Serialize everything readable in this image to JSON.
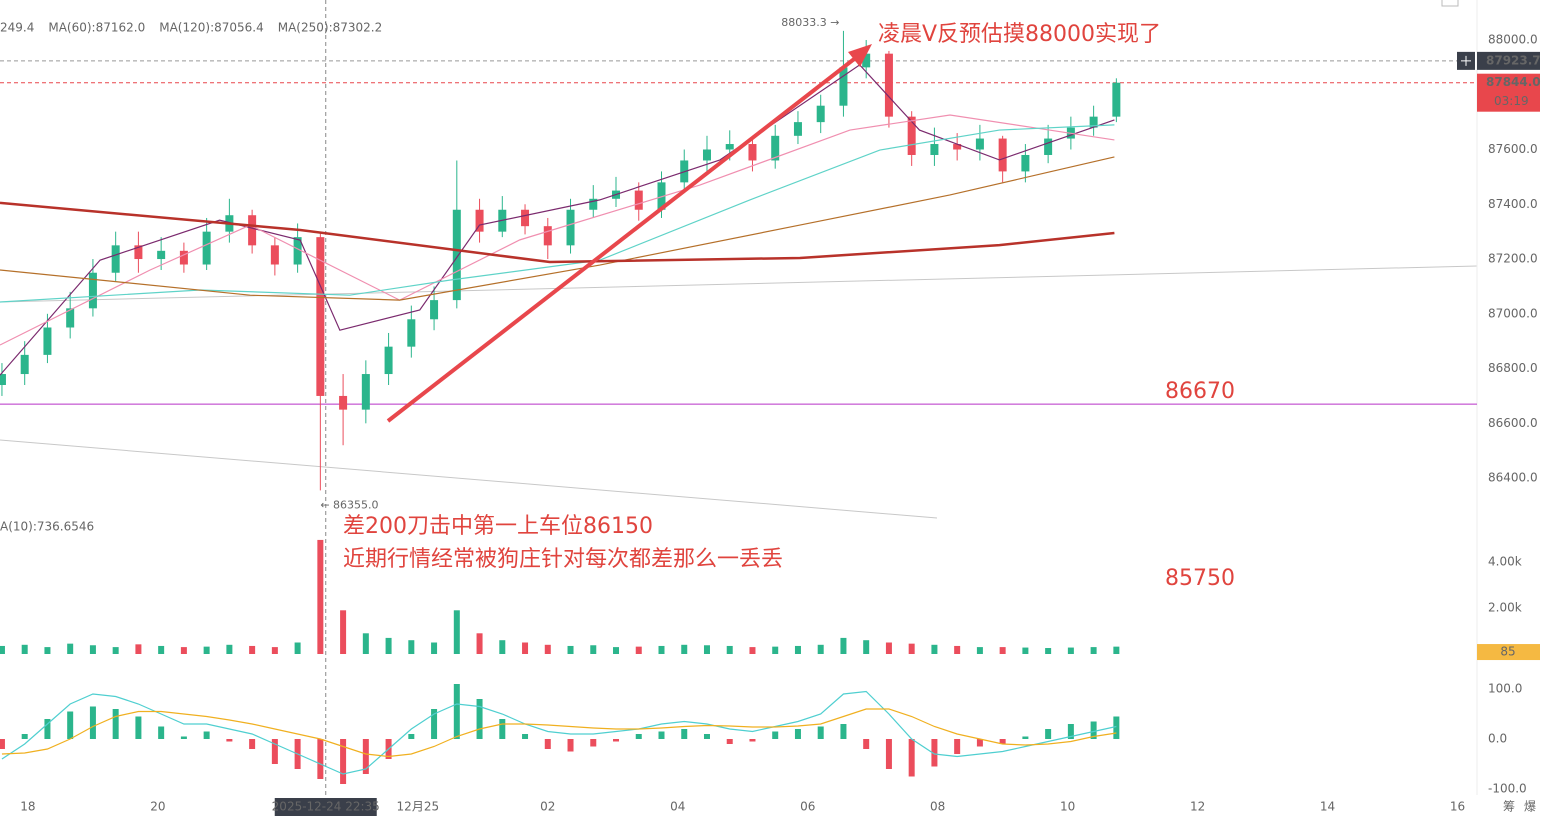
{
  "chart_data": [
    {
      "type": "candlestick",
      "x": [
        17.6,
        17.95,
        18.3,
        18.65,
        19,
        19.35,
        19.7,
        20.05,
        20.4,
        20.75,
        21.1,
        21.45,
        21.8,
        22.15,
        22.5,
        22.85,
        23.2,
        23.55,
        23.9,
        24.25,
        24.6,
        24.95,
        25.3,
        25.65,
        26,
        26.35,
        26.7,
        27.05,
        27.4,
        27.75,
        28.1,
        28.45,
        28.8,
        29.15,
        29.5,
        29.85,
        30.2,
        30.55,
        30.9,
        31.25,
        31.6,
        31.95,
        32.3,
        32.65,
        33,
        33.35,
        33.7,
        34.05,
        34.4,
        34.75
      ],
      "open": [
        86740,
        86780,
        86850,
        86950,
        87020,
        87150,
        87250,
        87200,
        87230,
        87180,
        87300,
        87360,
        87250,
        87180,
        87280,
        86700,
        86650,
        86780,
        86880,
        86980,
        87050,
        87380,
        87300,
        87380,
        87320,
        87250,
        87380,
        87420,
        87450,
        87380,
        87480,
        87560,
        87600,
        87620,
        87560,
        87650,
        87700,
        87760,
        87900,
        87950,
        87720,
        87580,
        87620,
        87600,
        87640,
        87520,
        87580,
        87640,
        87680,
        87720
      ],
      "high": [
        86820,
        86900,
        87000,
        87080,
        87200,
        87300,
        87300,
        87280,
        87260,
        87350,
        87420,
        87380,
        87280,
        87330,
        87300,
        86780,
        86830,
        86930,
        87030,
        87100,
        87560,
        87420,
        87430,
        87400,
        87350,
        87420,
        87470,
        87500,
        87480,
        87520,
        87600,
        87650,
        87670,
        87650,
        87690,
        87740,
        87800,
        88033.3,
        88000,
        87960,
        87740,
        87680,
        87660,
        87690,
        87650,
        87620,
        87690,
        87720,
        87760,
        87860
      ],
      "low": [
        86700,
        86740,
        86820,
        86910,
        86990,
        87120,
        87150,
        87160,
        87150,
        87160,
        87260,
        87220,
        87140,
        87150,
        86355,
        86520,
        86600,
        86740,
        86840,
        86940,
        87020,
        87260,
        87280,
        87290,
        87200,
        87220,
        87350,
        87390,
        87340,
        87350,
        87450,
        87520,
        87560,
        87520,
        87530,
        87620,
        87660,
        87720,
        87860,
        87680,
        87540,
        87540,
        87560,
        87560,
        87480,
        87480,
        87550,
        87600,
        87650,
        87700
      ],
      "close": [
        86780,
        86850,
        86950,
        87020,
        87150,
        87250,
        87200,
        87230,
        87180,
        87300,
        87360,
        87250,
        87180,
        87280,
        86700,
        86650,
        86780,
        86880,
        86980,
        87050,
        87380,
        87300,
        87380,
        87320,
        87250,
        87380,
        87420,
        87450,
        87380,
        87480,
        87560,
        87600,
        87620,
        87560,
        87650,
        87700,
        87760,
        87900,
        87950,
        87720,
        87580,
        87620,
        87600,
        87640,
        87520,
        87580,
        87640,
        87680,
        87720,
        87844
      ],
      "up_color": "#2bb58c",
      "down_color": "#eb4d5c",
      "xlim": [
        17.57,
        40.3
      ],
      "xticks": [
        18,
        20,
        {
          "value": 24,
          "label": "12月25"
        },
        {
          "value": 26,
          "label": "02"
        },
        {
          "value": 28,
          "label": "04"
        },
        {
          "value": 30,
          "label": "06"
        },
        {
          "value": 32,
          "label": "08"
        },
        {
          "value": 34,
          "label": "10"
        },
        {
          "value": 36,
          "label": "12"
        },
        {
          "value": 38,
          "label": "14"
        },
        {
          "value": 40,
          "label": "16"
        }
      ],
      "ylim": [
        86320,
        88146
      ],
      "yticks": [
        {
          "value": 86400,
          "label": "86400.0"
        },
        {
          "value": 86600,
          "label": "86600.0"
        },
        {
          "value": 86800,
          "label": "86800.0"
        },
        {
          "value": 87000,
          "label": "87000.0"
        },
        {
          "value": 87200,
          "label": "87200.0"
        },
        {
          "value": 87400,
          "label": "87400.0"
        },
        {
          "value": 87600,
          "label": "87600.0"
        },
        {
          "value": 87800,
          "label": "87800.0"
        },
        {
          "value": 88000,
          "label": "88000.0"
        }
      ],
      "series": [
        {
          "color": "#7b2a6e",
          "x": [
            17.57,
            19.11,
            20.95,
            22.19,
            22.8,
            24.03,
            24.95,
            26.8,
            28.65,
            30.8,
            31.72,
            32.95,
            34.72
          ],
          "values": [
            86776,
            87196,
            87342,
            87269,
            86940,
            87014,
            87324,
            87416,
            87562,
            87909,
            87671,
            87562,
            87708
          ]
        },
        {
          "name": "249.4",
          "color": "#f08fb0",
          "x": [
            17.57,
            19.88,
            21.42,
            23.72,
            25.57,
            28.34,
            30.65,
            32.19,
            33.72,
            34.72
          ],
          "values": [
            86886,
            87160,
            87324,
            87050,
            87270,
            87470,
            87671,
            87726,
            87671,
            87635
          ]
        },
        {
          "name": "MA(60):87162.0",
          "color": "#5fd3c8",
          "x": [
            17.57,
            20.65,
            22.95,
            24.49,
            26.8,
            29.11,
            31.11,
            32.95,
            34.72
          ],
          "values": [
            87043,
            87087,
            87068,
            87123,
            87196,
            87416,
            87598,
            87671,
            87690
          ]
        },
        {
          "name": "MA(120):87056.4",
          "color": "#b5702a",
          "x": [
            17.57,
            21.42,
            23.72,
            26.8,
            29.88,
            32.19,
            33.72,
            34.72
          ],
          "values": [
            87160,
            87068,
            87050,
            87178,
            87324,
            87434,
            87518,
            87573
          ]
        },
        {
          "name": "MA(250):87302.2",
          "color": "#b8322a",
          "x": [
            17.57,
            22.19,
            26.03,
            29.88,
            32.95,
            34.72
          ],
          "values": [
            87405,
            87306,
            87189,
            87204,
            87251,
            87295
          ]
        }
      ],
      "levels": [
        86670
      ],
      "level_color": "#b832c8",
      "last_price": {
        "value": 87844,
        "label": "87844.0"
      },
      "countdown": "03:19",
      "crosshair": {
        "x": 22.583,
        "x_label": "2025-12-24 22:35",
        "price": 87923.7
      },
      "max_label": "88033.3 →",
      "min_label": "← 86355.0"
    },
    {
      "type": "bar",
      "values": [
        350,
        400,
        300,
        450,
        380,
        300,
        420,
        350,
        300,
        320,
        400,
        350,
        300,
        500,
        4960,
        1900,
        900,
        700,
        600,
        500,
        1900,
        900,
        600,
        500,
        400,
        350,
        380,
        300,
        320,
        350,
        400,
        380,
        350,
        300,
        320,
        350,
        400,
        700,
        600,
        500,
        450,
        400,
        350,
        300,
        300,
        280,
        260,
        280,
        300,
        320
      ],
      "ylim": [
        0,
        6261
      ],
      "yticks": [
        {
          "value": 2000,
          "label": "2.00k"
        },
        {
          "value": 4000,
          "label": "4.00k"
        }
      ],
      "legend": "A(10):736.6546",
      "legend_color": "#e6a700",
      "last": 85
    },
    {
      "type": "macd",
      "histogram": [
        -20,
        10,
        40,
        55,
        65,
        60,
        45,
        25,
        5,
        15,
        -5,
        -20,
        -50,
        -60,
        -80,
        -90,
        -70,
        -40,
        10,
        60,
        110,
        80,
        40,
        10,
        -20,
        -25,
        -15,
        -5,
        10,
        15,
        20,
        10,
        -10,
        -5,
        15,
        20,
        25,
        30,
        -20,
        -60,
        -75,
        -55,
        -30,
        -15,
        -10,
        5,
        20,
        30,
        35,
        45
      ],
      "series": [
        {
          "color": "#4fcfd0",
          "values": [
            -40,
            -10,
            30,
            70,
            90,
            85,
            70,
            50,
            30,
            30,
            20,
            10,
            -10,
            -30,
            -50,
            -70,
            -60,
            -20,
            20,
            50,
            70,
            65,
            50,
            30,
            15,
            10,
            10,
            15,
            20,
            30,
            35,
            30,
            20,
            15,
            25,
            35,
            50,
            90,
            95,
            50,
            0,
            -30,
            -35,
            -30,
            -25,
            -15,
            -5,
            5,
            15,
            25
          ]
        },
        {
          "color": "#f0b020",
          "values": [
            -30,
            -28,
            -20,
            0,
            25,
            45,
            55,
            55,
            50,
            45,
            38,
            30,
            20,
            10,
            0,
            -15,
            -30,
            -35,
            -30,
            -15,
            5,
            20,
            30,
            30,
            28,
            25,
            22,
            20,
            20,
            22,
            25,
            27,
            26,
            24,
            24,
            26,
            30,
            45,
            60,
            60,
            45,
            25,
            10,
            0,
            -10,
            -12,
            -10,
            -5,
            5,
            12
          ]
        }
      ],
      "ylim": [
        -112,
        154
      ],
      "yticks": [
        {
          "value": 100,
          "label": "100.0"
        },
        {
          "value": 0,
          "label": "0.0"
        },
        {
          "value": -100,
          "label": "-100.0"
        }
      ]
    }
  ],
  "annotations": {
    "headline": "凌晨V反预估摸88000实现了",
    "note1": "差200刀击中第一上车位86150",
    "note2": "近期行情经常被狗庄针对每次都差那么一丢丢",
    "level_note": "85750"
  },
  "toolbar": [
    "筹",
    "爆"
  ]
}
